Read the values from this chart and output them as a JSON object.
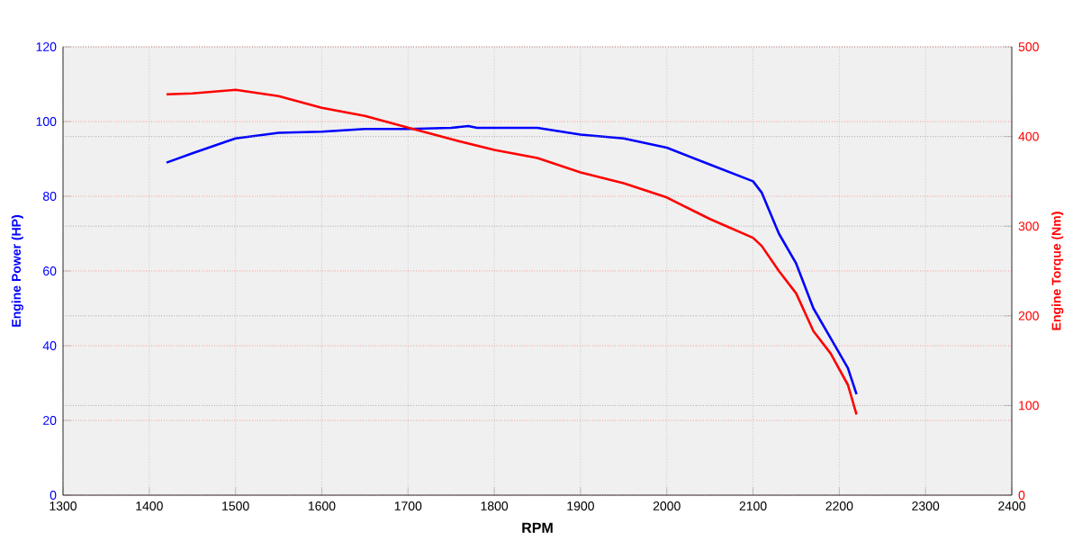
{
  "chart_data": {
    "type": "line",
    "xlabel": "RPM",
    "ylabel": "Engine Power (HP)",
    "y2label": "Engine Torque (Nm)",
    "xlim": [
      1300,
      2400
    ],
    "xticks": [
      1300,
      1400,
      1500,
      1600,
      1700,
      1800,
      1900,
      2000,
      2100,
      2200,
      2300,
      2400
    ],
    "ylim": [
      0,
      120
    ],
    "yticks": [
      0,
      20,
      40,
      60,
      80,
      100,
      120
    ],
    "y2lim": [
      0,
      500
    ],
    "y2ticks": [
      0,
      100,
      200,
      300,
      400,
      500
    ],
    "grid": true,
    "series": [
      {
        "color": "#0000ff",
        "x": [
          1420,
          1450,
          1500,
          1550,
          1600,
          1650,
          1700,
          1750,
          1770,
          1780,
          1850,
          1900,
          1950,
          2000,
          2050,
          2100,
          2110,
          2130,
          2150,
          2170,
          2190,
          2210,
          2220
        ],
        "values": [
          89,
          91.5,
          95.5,
          97,
          97.3,
          98,
          98,
          98.3,
          98.8,
          98.3,
          98.3,
          96.5,
          95.5,
          93,
          88.5,
          84,
          81,
          70,
          62,
          50,
          42,
          34,
          27
        ]
      },
      {
        "color": "#ff0000",
        "axis": "y2",
        "x": [
          1420,
          1450,
          1500,
          1550,
          1600,
          1650,
          1700,
          1750,
          1800,
          1850,
          1900,
          1950,
          2000,
          2050,
          2100,
          2110,
          2130,
          2150,
          2170,
          2190,
          2210,
          2220
        ],
        "values": [
          447,
          448,
          452,
          445,
          432,
          423,
          410,
          397,
          385,
          376,
          360,
          348,
          332,
          308,
          287,
          278,
          250,
          225,
          183,
          158,
          123,
          90
        ]
      }
    ]
  }
}
